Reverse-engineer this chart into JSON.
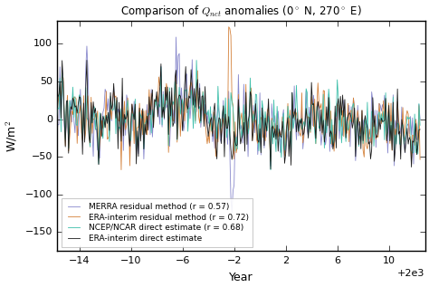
{
  "t_start": 1984.0,
  "t_end": 2012.5,
  "n_months": 342,
  "title": "Comparison of $Q_{net}$ anomalies (0$^\\circ$ N, 270$^\\circ$ E)",
  "xlabel": "Year",
  "ylabel": "W/m$^2$",
  "ylim": [
    -175,
    130
  ],
  "xlim": [
    1984.3,
    2012.8
  ],
  "xticks": [
    1986,
    1990,
    1994,
    1998,
    2002,
    2006,
    2010
  ],
  "yticks": [
    -150,
    -100,
    -50,
    0,
    50,
    100
  ],
  "colors": {
    "era_direct": "#1a1a1a",
    "ncep": "#3dbfaa",
    "era_residual": "#d4813a",
    "merra": "#8888cc"
  },
  "legend_labels": [
    "ERA-interim direct estimate",
    "NCEP/NCAR direct estimate (r = 0.68)",
    "ERA-interim residual method (r = 0.72)",
    "MERRA residual method (r = 0.57)"
  ],
  "linewidth": 0.6,
  "figsize": [
    4.74,
    3.17
  ],
  "dpi": 100,
  "bg_color": "#e8e8e8",
  "grid_color": "#ffffff",
  "title_fontsize": 8.5
}
